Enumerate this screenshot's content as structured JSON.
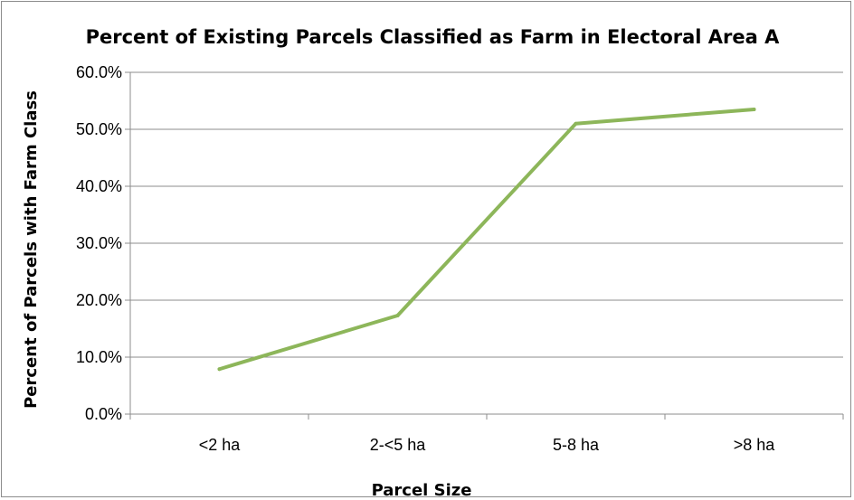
{
  "chart_data": {
    "type": "line",
    "title": "Percent of Existing Parcels Classified as Farm in Electoral Area A",
    "xlabel": "Parcel Size",
    "ylabel": "Percent of Parcels with Farm  Class",
    "categories": [
      "<2 ha",
      "2-<5 ha",
      "5-8 ha",
      ">8 ha"
    ],
    "series": [
      {
        "values": [
          7.9,
          17.3,
          51.0,
          53.5
        ]
      }
    ],
    "ylim": [
      0,
      60
    ],
    "yticks": [
      "0.0%",
      "10.0%",
      "20.0%",
      "30.0%",
      "40.0%",
      "50.0%",
      "60.0%"
    ],
    "grid": "horizontal",
    "legend": "none",
    "colors": {
      "line": "#8db65a",
      "grid": "#8c8c8c",
      "axis": "#8c8c8c"
    }
  }
}
